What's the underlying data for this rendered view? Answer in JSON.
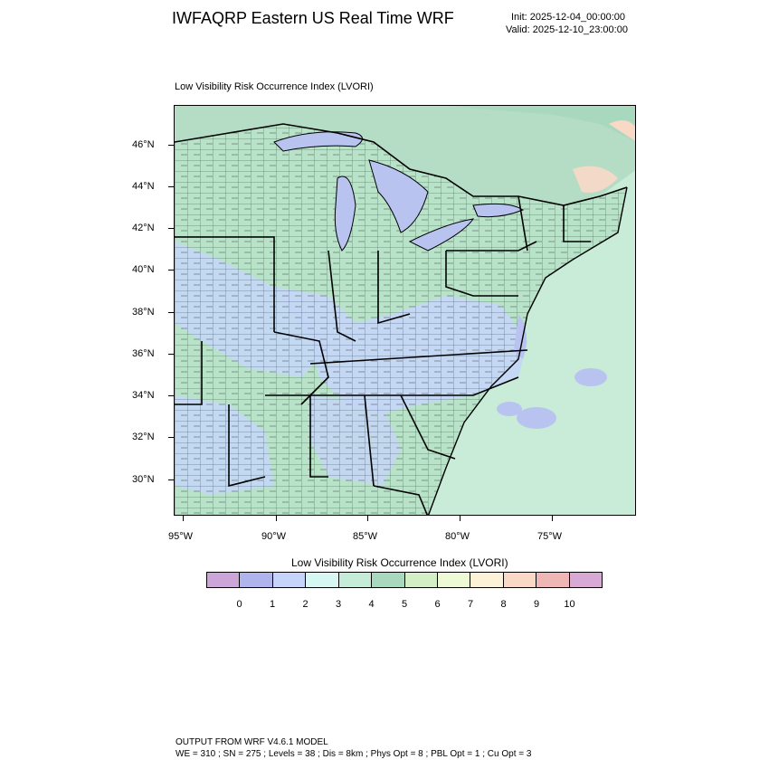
{
  "header": {
    "title": "IWFAQRP Eastern US Real Time WRF",
    "init": "Init: 2025-12-04_00:00:00",
    "valid": "Valid: 2025-12-10_23:00:00"
  },
  "map": {
    "title": "Low Visibility Risk Occurrence Index   (LVORI)",
    "lat_labels": [
      "46°N",
      "44°N",
      "42°N",
      "40°N",
      "38°N",
      "36°N",
      "34°N",
      "32°N",
      "30°N"
    ],
    "lon_labels": [
      "95°W",
      "90°W",
      "85°W",
      "80°W",
      "75°W"
    ],
    "colors": {
      "land_low": "#c4d6f5",
      "land_mid": "#b8e3c9",
      "ocean": "#c8ecd8",
      "lake": "#b8c4ef",
      "canada": "#b5dcc5",
      "county_lines": "#000000"
    }
  },
  "legend": {
    "title": "Low Visibility Risk Occurrence Index  (LVORI)",
    "colors": [
      "#cda6d9",
      "#b0b4ec",
      "#c6d4f9",
      "#d7f8f2",
      "#c5ecd9",
      "#a8d8bd",
      "#d4efc5",
      "#eef9d6",
      "#fcf2d8",
      "#fad8c6",
      "#eeb7b5",
      "#d8a9d4"
    ],
    "labels": [
      "0",
      "1",
      "2",
      "3",
      "4",
      "5",
      "6",
      "7",
      "8",
      "9",
      "10"
    ]
  },
  "footer": {
    "line1": "OUTPUT FROM WRF V4.6.1 MODEL",
    "line2": "WE = 310 ; SN = 275 ; Levels = 38 ; Dis = 8km ; Phys Opt = 8 ; PBL Opt = 1 ; Cu Opt = 3"
  }
}
